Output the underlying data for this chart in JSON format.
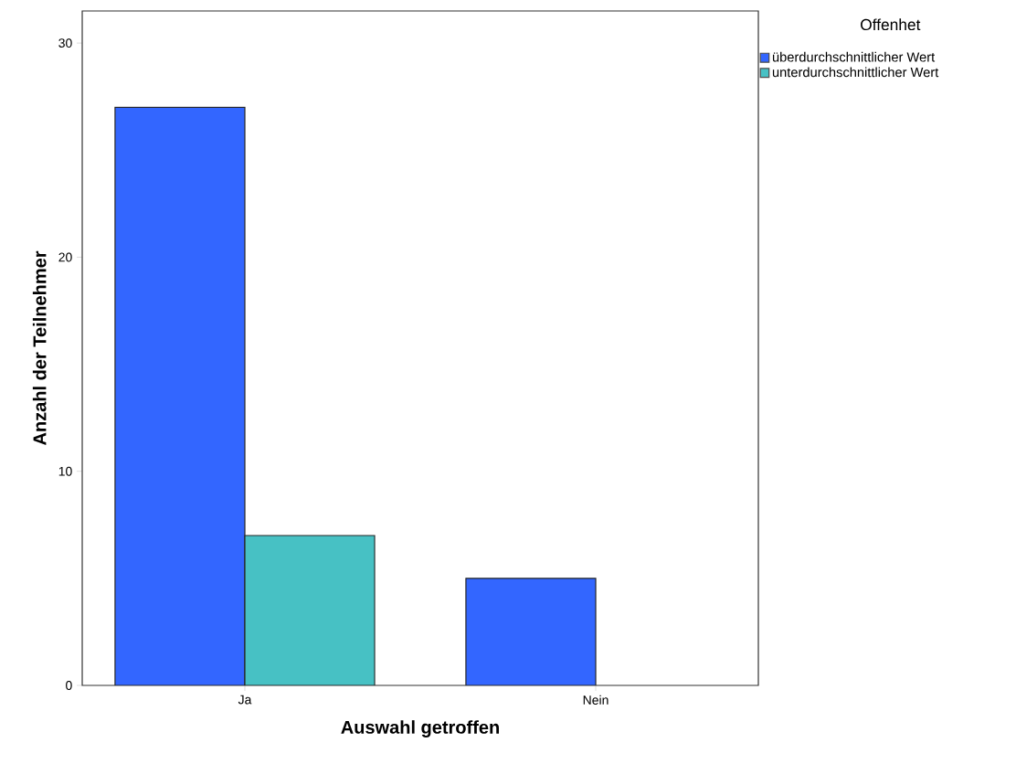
{
  "chart_data": {
    "type": "bar",
    "xlabel": "Auswahl getroffen",
    "ylabel": "Anzahl der Teilnehmer",
    "legend_title": "Offenhet",
    "categories": [
      "Ja",
      "Nein"
    ],
    "series": [
      {
        "name": "überdurchschnittlicher Wert",
        "color": "#3366ff",
        "values": [
          27,
          5
        ]
      },
      {
        "name": "unterdurchschnittlicher Wert",
        "color": "#47c1c4",
        "values": [
          7,
          null
        ]
      }
    ],
    "ylim": [
      0,
      31.5
    ],
    "yticks": [
      0,
      10,
      20,
      30
    ],
    "grid": false,
    "legend": "top right"
  }
}
